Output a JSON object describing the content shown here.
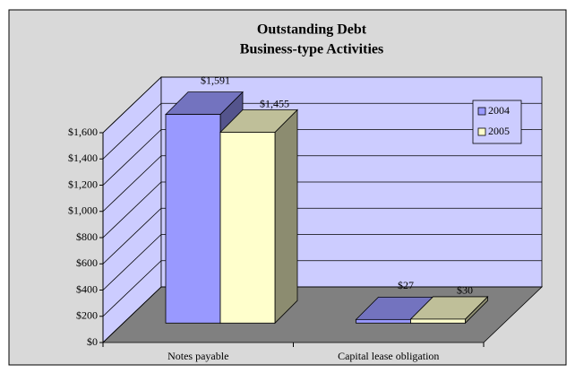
{
  "chart_data": {
    "type": "bar3d",
    "title": "Outstanding Debt",
    "subtitle": "Business-type Activities",
    "categories": [
      "Notes payable",
      "Capital lease obligation"
    ],
    "series": [
      {
        "name": "2004",
        "color": "#9999ff",
        "values": [
          1591,
          27
        ],
        "value_labels": [
          "$1,591",
          "$27"
        ]
      },
      {
        "name": "2005",
        "color": "#ffffcc",
        "values": [
          1455,
          30
        ],
        "value_labels": [
          "$1,455",
          "$30"
        ]
      }
    ],
    "ylim": [
      0,
      1600
    ],
    "yticks": [
      {
        "value": 0,
        "label": "$0"
      },
      {
        "value": 200,
        "label": "$200"
      },
      {
        "value": 400,
        "label": "$400"
      },
      {
        "value": 600,
        "label": "$600"
      },
      {
        "value": 800,
        "label": "$800"
      },
      {
        "value": 1000,
        "label": "$1,000"
      },
      {
        "value": 1200,
        "label": "$1,200"
      },
      {
        "value": 1400,
        "label": "$1,400"
      },
      {
        "value": 1600,
        "label": "$1,600"
      }
    ],
    "grid": true,
    "legend": "right"
  }
}
